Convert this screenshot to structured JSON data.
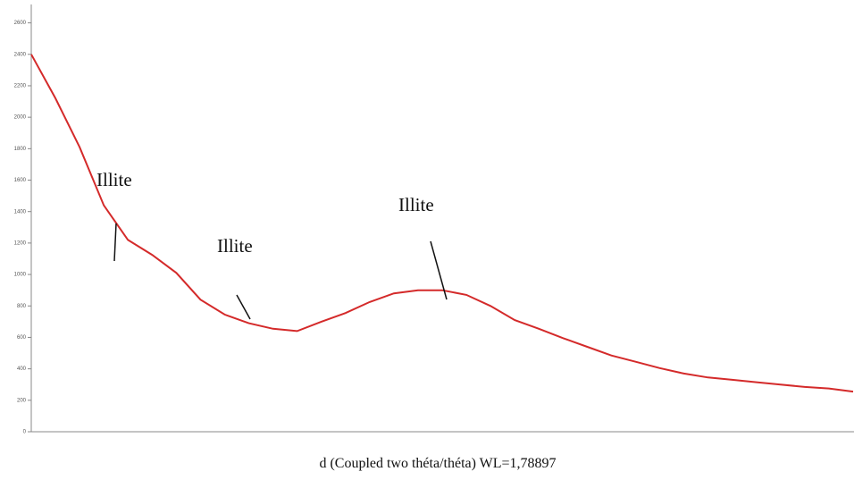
{
  "chart_data": {
    "type": "line",
    "x_label": "d (Coupled two théta/théta) WL=1,78897",
    "annotations": [
      "Illite",
      "Illite",
      "Illite"
    ],
    "categories": [
      null,
      null,
      null,
      null,
      null,
      null,
      null,
      null,
      null,
      null,
      null,
      null,
      null,
      null,
      null,
      null,
      null,
      null,
      null,
      null,
      null,
      null,
      null,
      null,
      null,
      null,
      null,
      null,
      null,
      null,
      null,
      null,
      null,
      null,
      null
    ],
    "series": [
      {
        "color": "#d42a2a",
        "values": [
          2400,
          2120,
          1810,
          1440,
          1220,
          1125,
          1010,
          840,
          745,
          690,
          655,
          640,
          700,
          755,
          825,
          880,
          900,
          900,
          870,
          800,
          710,
          655,
          595,
          540,
          485,
          445,
          405,
          370,
          345,
          330,
          315,
          300,
          285,
          275,
          255
        ]
      }
    ],
    "ylim": [
      0,
      2700
    ],
    "yticks": [
      0,
      200,
      400,
      600,
      800,
      1000,
      1200,
      1400,
      1600,
      1800,
      2000,
      2200,
      2400,
      2600
    ]
  }
}
